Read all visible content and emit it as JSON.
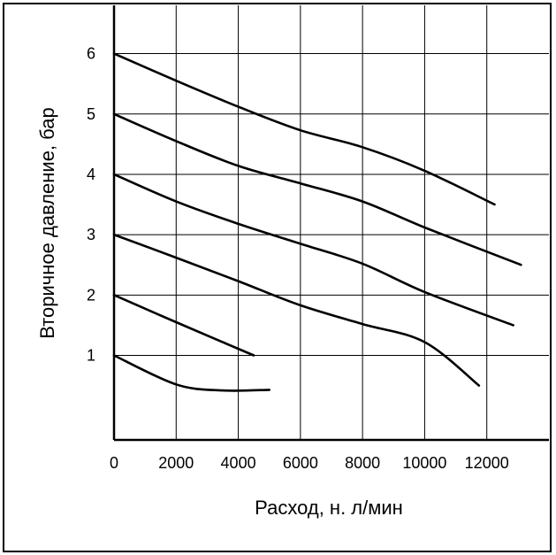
{
  "chart_data": {
    "type": "line",
    "xlabel": "Расход, н. л/мин",
    "ylabel": "Вторичное давление, бар",
    "xlim": [
      0,
      14000
    ],
    "ylim": [
      -0.4,
      6.8
    ],
    "x_ticks": [
      "0",
      "2000",
      "4000",
      "6000",
      "8000",
      "10000",
      "12000"
    ],
    "y_ticks": [
      "1",
      "2",
      "3",
      "4",
      "5",
      "6"
    ],
    "grid": true,
    "series": [
      {
        "points": [
          [
            0,
            6.0
          ],
          [
            2000,
            5.55
          ],
          [
            4000,
            5.12
          ],
          [
            6000,
            4.73
          ],
          [
            8000,
            4.45
          ],
          [
            10000,
            4.06
          ],
          [
            12250,
            3.5
          ]
        ]
      },
      {
        "points": [
          [
            0,
            5.0
          ],
          [
            2000,
            4.55
          ],
          [
            4000,
            4.14
          ],
          [
            6000,
            3.85
          ],
          [
            8000,
            3.55
          ],
          [
            10000,
            3.12
          ],
          [
            13100,
            2.5
          ]
        ]
      },
      {
        "points": [
          [
            0,
            4.0
          ],
          [
            2000,
            3.55
          ],
          [
            4000,
            3.18
          ],
          [
            6000,
            2.85
          ],
          [
            8000,
            2.52
          ],
          [
            10000,
            2.05
          ],
          [
            12850,
            1.5
          ]
        ]
      },
      {
        "points": [
          [
            0,
            3.0
          ],
          [
            2000,
            2.62
          ],
          [
            4000,
            2.23
          ],
          [
            6000,
            1.83
          ],
          [
            8000,
            1.52
          ],
          [
            10000,
            1.22
          ],
          [
            11750,
            0.5
          ]
        ]
      },
      {
        "points": [
          [
            0,
            2.0
          ],
          [
            2000,
            1.55
          ],
          [
            4500,
            1.0
          ]
        ]
      },
      {
        "points": [
          [
            0,
            1.0
          ],
          [
            2000,
            0.52
          ],
          [
            3500,
            0.42
          ],
          [
            5000,
            0.43
          ]
        ]
      }
    ]
  }
}
